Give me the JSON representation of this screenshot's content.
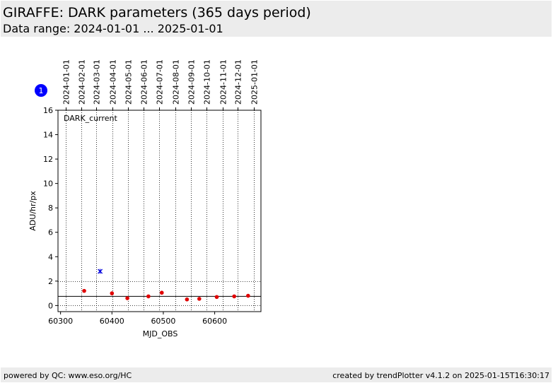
{
  "header": {
    "title": "GIRAFFE: DARK parameters (365 days period)",
    "subtitle": "Data range: 2024-01-01 ... 2025-01-01"
  },
  "footer": {
    "left": "powered by QC: www.eso.org/HC",
    "right": "created by trendPlotter v4.1.2 on 2025-01-15T16:30:17"
  },
  "colors": {
    "header_bg": "#ececec",
    "point_red": "#e00000",
    "point_blue": "#0000dd",
    "badge": "#0000ff"
  },
  "chart_data": {
    "type": "scatter",
    "panel_label": "DARK_current",
    "badge_label": "1",
    "xlabel": "MJD_OBS",
    "ylabel": "ADU/hr/px",
    "xlim": [
      60295,
      60690
    ],
    "ylim": [
      -0.5,
      16
    ],
    "x_ticks": [
      60300,
      60400,
      60500,
      60600
    ],
    "y_ticks": [
      0,
      2,
      4,
      6,
      8,
      10,
      12,
      14,
      16
    ],
    "date_ticks": [
      {
        "label": "2024-01-01",
        "mjd": 60310
      },
      {
        "label": "2024-02-01",
        "mjd": 60341
      },
      {
        "label": "2024-03-01",
        "mjd": 60370
      },
      {
        "label": "2024-04-01",
        "mjd": 60401
      },
      {
        "label": "2024-05-01",
        "mjd": 60431
      },
      {
        "label": "2024-06-01",
        "mjd": 60462
      },
      {
        "label": "2024-07-01",
        "mjd": 60492
      },
      {
        "label": "2024-08-01",
        "mjd": 60523
      },
      {
        "label": "2024-09-01",
        "mjd": 60554
      },
      {
        "label": "2024-10-01",
        "mjd": 60584
      },
      {
        "label": "2024-11-01",
        "mjd": 60615
      },
      {
        "label": "2024-12-01",
        "mjd": 60645
      },
      {
        "label": "2025-01-01",
        "mjd": 60676
      }
    ],
    "reference_line": 0.75,
    "dotted_hlines": [
      0,
      2
    ],
    "series": [
      {
        "marker": "dot",
        "color": "#e00000",
        "points": [
          [
            60346,
            1.2
          ],
          [
            60400,
            1.0
          ],
          [
            60430,
            0.6
          ],
          [
            60471,
            0.75
          ],
          [
            60497,
            1.05
          ],
          [
            60546,
            0.5
          ],
          [
            60570,
            0.55
          ],
          [
            60604,
            0.7
          ],
          [
            60638,
            0.75
          ],
          [
            60665,
            0.8
          ]
        ]
      },
      {
        "marker": "x",
        "color": "#0000dd",
        "points": [
          [
            60377,
            2.8
          ]
        ]
      }
    ]
  }
}
